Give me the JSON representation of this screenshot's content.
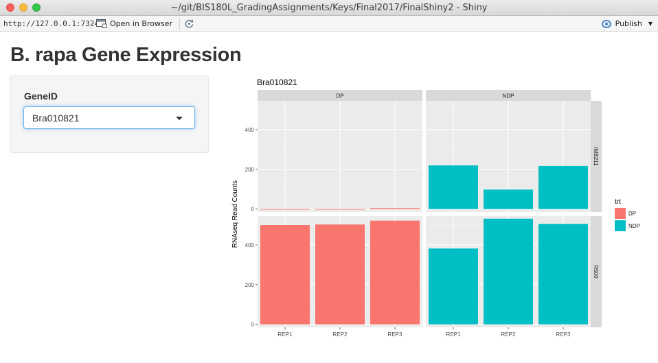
{
  "window": {
    "title": "~/git/BIS180L_GradingAssignments/Keys/Final2017/FinalShiny2 - Shiny"
  },
  "toolbar": {
    "url": "http://127.0.0.1:7324",
    "open_in_browser_label": "Open in Browser",
    "publish_label": "Publish",
    "publish_color": "#4a86c8"
  },
  "app": {
    "title": "B. rapa Gene Expression",
    "select_label": "GeneID",
    "selected_gene": "Bra010821"
  },
  "chart_data": {
    "type": "bar",
    "title": "Bra010821",
    "xlabel": "",
    "ylabel": "RNAseq Read Counts",
    "categories": [
      "REP1",
      "REP2",
      "REP3"
    ],
    "column_facets": [
      "DP",
      "NDP"
    ],
    "row_facets": [
      "IMB211",
      "R500"
    ],
    "ylim": [
      -15,
      545
    ],
    "yticks": [
      0,
      200,
      400
    ],
    "grid": true,
    "legend": {
      "title": "trt",
      "placement": "right",
      "entries": [
        {
          "name": "DP",
          "color": "#F8766D"
        },
        {
          "name": "NDP",
          "color": "#00BFC4"
        }
      ]
    },
    "panels": [
      {
        "row": "IMB211",
        "col": "DP",
        "trt": "DP",
        "values": [
          0,
          0,
          5
        ]
      },
      {
        "row": "IMB211",
        "col": "NDP",
        "trt": "NDP",
        "values": [
          220,
          98,
          217
        ]
      },
      {
        "row": "R500",
        "col": "DP",
        "trt": "DP",
        "values": [
          500,
          503,
          522
        ]
      },
      {
        "row": "R500",
        "col": "NDP",
        "trt": "NDP",
        "values": [
          382,
          532,
          506
        ]
      }
    ]
  }
}
